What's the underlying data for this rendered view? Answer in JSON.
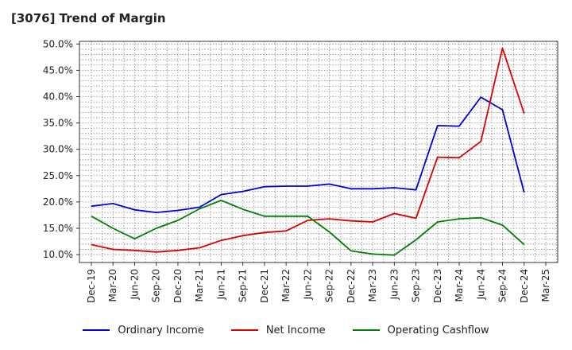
{
  "chart_data": {
    "type": "line",
    "title": "[3076]  Trend of Margin",
    "xlabel": "",
    "ylabel": "",
    "ylim": [
      8.5,
      50.5
    ],
    "yticks": [
      10,
      15,
      20,
      25,
      30,
      35,
      40,
      45,
      50
    ],
    "ytick_labels": [
      "10.0%",
      "15.0%",
      "20.0%",
      "25.0%",
      "30.0%",
      "35.0%",
      "40.0%",
      "45.0%",
      "50.0%"
    ],
    "categories": [
      "Dec-19",
      "Mar-20",
      "Jun-20",
      "Sep-20",
      "Dec-20",
      "Mar-21",
      "Jun-21",
      "Sep-21",
      "Dec-21",
      "Mar-22",
      "Jun-22",
      "Sep-22",
      "Dec-22",
      "Mar-23",
      "Jun-23",
      "Sep-23",
      "Dec-23",
      "Mar-24",
      "Jun-24",
      "Sep-24",
      "Dec-24",
      "Mar-25"
    ],
    "grid": true,
    "legend_position": "bottom",
    "series": [
      {
        "name": "Ordinary Income",
        "color": "#0000dd",
        "values": [
          19.2,
          19.7,
          18.5,
          18.0,
          18.4,
          19.0,
          21.4,
          22.0,
          22.9,
          23.0,
          23.0,
          23.4,
          22.5,
          22.5,
          22.7,
          22.3,
          34.5,
          34.4,
          39.9,
          37.5,
          21.8,
          null
        ]
      },
      {
        "name": "Net Income",
        "color": "#dd0000",
        "values": [
          11.9,
          11.0,
          10.8,
          10.5,
          10.8,
          11.3,
          12.7,
          13.6,
          14.2,
          14.5,
          16.5,
          16.8,
          16.4,
          16.2,
          17.8,
          16.9,
          28.5,
          28.4,
          31.5,
          49.2,
          36.8,
          null
        ]
      },
      {
        "name": "Operating Cashflow",
        "color": "#008000",
        "values": [
          17.3,
          15.0,
          13.0,
          15.0,
          16.5,
          18.7,
          20.3,
          18.6,
          17.3,
          17.3,
          17.3,
          14.3,
          10.7,
          10.1,
          9.9,
          12.8,
          16.2,
          16.8,
          17.0,
          15.6,
          11.9,
          null
        ]
      }
    ]
  }
}
